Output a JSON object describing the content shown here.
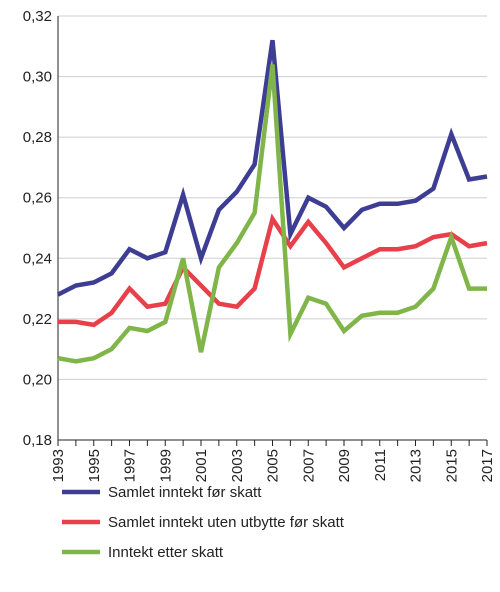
{
  "chart_data": {
    "type": "line",
    "title": "",
    "xlabel": "",
    "ylabel": "",
    "ylim": [
      0.18,
      0.32
    ],
    "xlim": [
      1993,
      2017
    ],
    "y_ticks": [
      "0,18",
      "0,20",
      "0,22",
      "0,24",
      "0,26",
      "0,28",
      "0,30",
      "0,32"
    ],
    "y_tick_values": [
      0.18,
      0.2,
      0.22,
      0.24,
      0.26,
      0.28,
      0.3,
      0.32
    ],
    "x_ticks": [
      "1993",
      "1995",
      "1997",
      "1999",
      "2001",
      "2003",
      "2005",
      "2007",
      "2009",
      "2011",
      "2013",
      "2015",
      "2017"
    ],
    "x": [
      1993,
      1994,
      1995,
      1996,
      1997,
      1998,
      1999,
      2000,
      2001,
      2002,
      2003,
      2004,
      2005,
      2006,
      2007,
      2008,
      2009,
      2010,
      2011,
      2012,
      2013,
      2014,
      2015,
      2016,
      2017
    ],
    "grid": "horizontal",
    "legend_position": "bottom",
    "series": [
      {
        "name": "Samlet inntekt før skatt",
        "color": "#3d3d94",
        "values": [
          0.228,
          0.231,
          0.232,
          0.235,
          0.243,
          0.24,
          0.242,
          0.261,
          0.24,
          0.256,
          0.262,
          0.271,
          0.312,
          0.248,
          0.26,
          0.257,
          0.25,
          0.256,
          0.258,
          0.258,
          0.259,
          0.263,
          0.281,
          0.266,
          0.267
        ]
      },
      {
        "name": "Samlet inntekt uten utbytte før skatt",
        "color": "#e8404a",
        "values": [
          0.219,
          0.219,
          0.218,
          0.222,
          0.23,
          0.224,
          0.225,
          0.237,
          0.231,
          0.225,
          0.224,
          0.23,
          0.253,
          0.244,
          0.252,
          0.245,
          0.237,
          0.24,
          0.243,
          0.243,
          0.244,
          0.247,
          0.248,
          0.244,
          0.245
        ]
      },
      {
        "name": "Inntekt etter skatt",
        "color": "#80b54a",
        "values": [
          0.207,
          0.206,
          0.207,
          0.21,
          0.217,
          0.216,
          0.219,
          0.24,
          0.209,
          0.237,
          0.245,
          0.255,
          0.304,
          0.215,
          0.227,
          0.225,
          0.216,
          0.221,
          0.222,
          0.222,
          0.224,
          0.23,
          0.247,
          0.23,
          0.23
        ]
      }
    ]
  }
}
